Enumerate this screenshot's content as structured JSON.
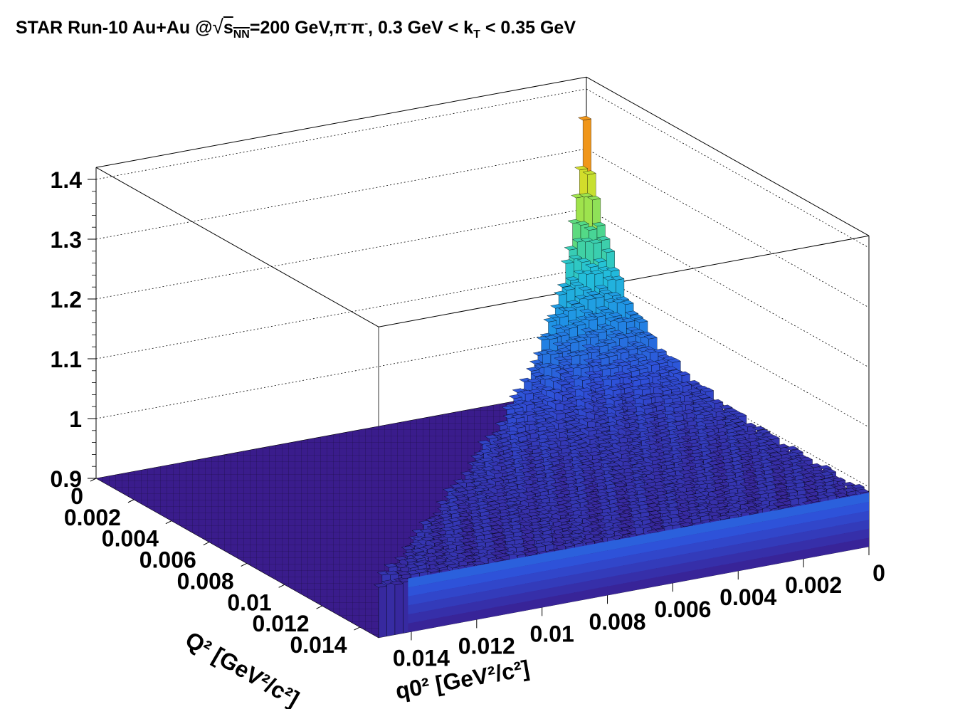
{
  "title": {
    "prefix": "STAR Run-10 Au+Au @",
    "sqrt_symbol": "√",
    "s": "s",
    "s_sub": "NN",
    "energy": "=200 GeV,",
    "pi1": "π",
    "pi2": "π",
    "pi_sup": "-",
    "kt_prefix": ", 0.3 GeV < k",
    "kt_sub": "T",
    "kt_suffix": " < 0.35 GeV"
  },
  "chart_data": {
    "type": "lego3d",
    "title": "STAR Run-10 Au+Au @√sNN=200 GeV,π-π-, 0.3 GeV < kT < 0.35 GeV",
    "z_axis": {
      "range": [
        0.9,
        1.42
      ],
      "ticks": [
        "0.9",
        "1",
        "1.1",
        "1.2",
        "1.3",
        "1.4"
      ]
    },
    "q0_axis": {
      "title": "q0² [GeV²/c²]",
      "range": [
        0,
        0.015
      ],
      "ticks": [
        "0",
        "0.002",
        "0.004",
        "0.006",
        "0.008",
        "0.01",
        "0.012",
        "0.014"
      ]
    },
    "Q_axis": {
      "title": "Q² [GeV²/c²]",
      "range": [
        0,
        0.015
      ],
      "ticks": [
        "0",
        "0.002",
        "0.004",
        "0.006",
        "0.008",
        "0.01",
        "0.012",
        "0.014"
      ]
    },
    "surface": {
      "peak_value": 1.42,
      "peak_at": {
        "Q2": 0.0,
        "q0_2": 0.0
      },
      "edge_value_at_Q2_0": 0.99,
      "floor_value": 0.9,
      "populated_region": "Q2 >= q0_2",
      "colormap": [
        "#3a1c8c",
        "#2f4fd8",
        "#1f8fe6",
        "#23c2d9",
        "#4fd88a",
        "#b6e63a",
        "#f0d21a",
        "#f08a1a",
        "#d22a0a"
      ]
    },
    "grid": true
  }
}
